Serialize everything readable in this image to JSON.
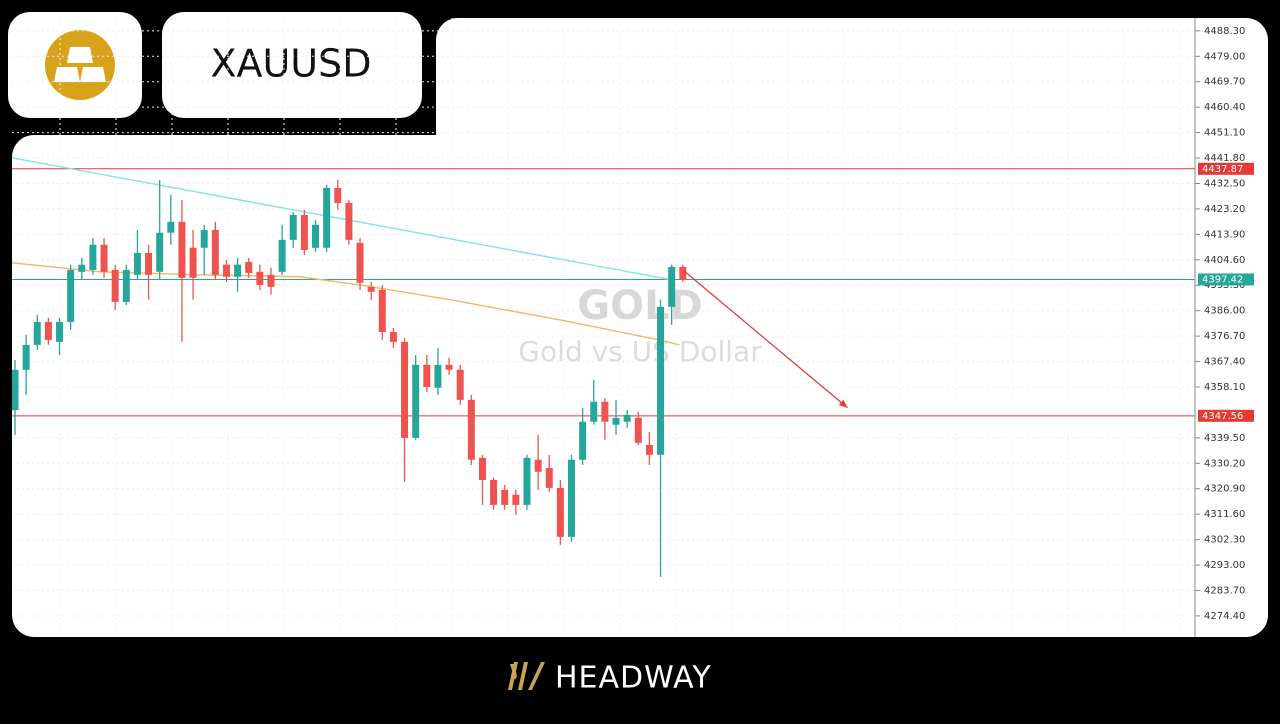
{
  "header": {
    "symbol": "XAUUSD"
  },
  "footer": {
    "brand": "HEADWAY"
  },
  "chart_data": {
    "type": "candlestick",
    "watermark": {
      "title": "GOLD",
      "subtitle": "Gold vs US Dollar"
    },
    "up_color": "#26a69a",
    "down_color": "#ef5350",
    "open": [
      4349.7,
      4364.4,
      4373.5,
      4381.9,
      4374.6,
      4381.9,
      4400.2,
      4400.9,
      4410.1,
      4400.9,
      4389.2,
      4399.1,
      4407.1,
      4400.2,
      4414.5,
      4418.5,
      4409.0,
      4409.0,
      4415.5,
      4402.8,
      4398.4,
      4403.8,
      4400.2,
      4399.1,
      4400.2,
      4411.9,
      4421.0,
      4409.0,
      4409.0,
      4430.9,
      4425.4,
      4410.8,
      4394.7,
      4393.6,
      4378.2,
      4374.6,
      4339.5,
      4366.2,
      4357.8,
      4366.2,
      4364.4,
      4353.4,
      4332.2,
      4324.1,
      4320.5,
      4318.7,
      4315.0,
      4331.5,
      4328.5,
      4321.2,
      4303.3,
      4331.5,
      4345.4,
      4352.7,
      4344.3,
      4345.4,
      4346.8,
      4336.9,
      4333.3,
      4387.4,
      4402.0
    ],
    "high": [
      4368.0,
      4377.2,
      4384.5,
      4383.4,
      4383.4,
      4402.8,
      4405.3,
      4412.6,
      4412.6,
      4402.8,
      4402.8,
      4415.5,
      4410.1,
      4433.8,
      4428.3,
      4426.5,
      4415.5,
      4417.4,
      4418.5,
      4404.6,
      4405.3,
      4405.3,
      4402.8,
      4401.7,
      4417.4,
      4422.1,
      4422.9,
      4419.2,
      4432.0,
      4433.8,
      4426.5,
      4412.6,
      4396.5,
      4395.4,
      4379.7,
      4376.1,
      4369.8,
      4369.8,
      4372.4,
      4368.8,
      4366.2,
      4355.2,
      4333.3,
      4324.9,
      4322.3,
      4320.5,
      4333.3,
      4340.6,
      4333.3,
      4324.1,
      4333.3,
      4350.5,
      4360.7,
      4354.1,
      4353.4,
      4349.7,
      4349.0,
      4341.7,
      4390.0,
      4402.8,
      4402.8
    ],
    "low": [
      4340.6,
      4355.2,
      4371.7,
      4373.5,
      4369.8,
      4379.0,
      4397.3,
      4399.1,
      4398.0,
      4386.3,
      4388.1,
      4397.3,
      4390.0,
      4397.3,
      4410.1,
      4374.6,
      4390.0,
      4399.1,
      4397.3,
      4396.5,
      4392.9,
      4398.0,
      4393.6,
      4391.8,
      4399.1,
      4409.0,
      4406.4,
      4407.5,
      4407.5,
      4422.9,
      4410.1,
      4393.6,
      4390.0,
      4375.3,
      4372.4,
      4323.4,
      4338.8,
      4356.3,
      4355.2,
      4362.5,
      4351.6,
      4329.6,
      4315.0,
      4313.2,
      4313.2,
      4311.3,
      4313.2,
      4320.5,
      4319.8,
      4300.4,
      4301.5,
      4329.6,
      4344.3,
      4338.8,
      4340.6,
      4343.2,
      4336.9,
      4329.6,
      4288.7,
      4380.8,
      4396.5
    ],
    "close": [
      4364.4,
      4373.5,
      4381.9,
      4375.3,
      4381.9,
      4400.9,
      4402.8,
      4410.1,
      4400.2,
      4389.2,
      4400.9,
      4407.1,
      4399.1,
      4414.5,
      4418.5,
      4398.0,
      4398.0,
      4415.5,
      4399.1,
      4398.4,
      4402.8,
      4399.8,
      4395.4,
      4394.7,
      4411.9,
      4421.0,
      4408.2,
      4417.4,
      4430.9,
      4425.4,
      4411.9,
      4396.2,
      4392.9,
      4378.2,
      4374.6,
      4339.5,
      4366.2,
      4358.1,
      4366.2,
      4364.4,
      4353.4,
      4331.5,
      4324.1,
      4315.0,
      4315.0,
      4315.0,
      4332.2,
      4327.1,
      4321.2,
      4303.3,
      4331.5,
      4345.4,
      4352.7,
      4345.4,
      4346.8,
      4347.9,
      4337.7,
      4333.3,
      4387.4,
      4402.0,
      4397.3
    ],
    "overlays": [
      {
        "color": "#7fe3ea",
        "x": [
          -0.3,
          59.0
        ],
        "values": [
          4441.9,
          4397.3
        ]
      },
      {
        "color": "#f0b860",
        "x": [
          -0.3,
          7.6,
          16.6,
          25.6,
          31.0,
          39.1,
          49.0,
          57.9,
          59.7
        ],
        "values": [
          4403.5,
          4400.2,
          4399.1,
          4398.4,
          4395.4,
          4390.0,
          4382.6,
          4375.3,
          4373.5
        ]
      }
    ],
    "arrow": {
      "color": "#e53935",
      "x": [
        60,
        74.8
      ],
      "values": [
        4400.9,
        4350.5
      ]
    },
    "levels": [
      {
        "value": 4437.87,
        "color": "#e53935"
      },
      {
        "value": 4397.42,
        "color": "#26a69a"
      },
      {
        "value": 4347.56,
        "color": "#e53935"
      }
    ],
    "ylim": [
      4266.7,
      4493.0
    ],
    "yticks": [
      {
        "value": 4488.3,
        "label": "4488.30"
      },
      {
        "value": 4479.0,
        "label": "4479.00"
      },
      {
        "value": 4469.7,
        "label": "4469.70"
      },
      {
        "value": 4460.4,
        "label": "4460.40"
      },
      {
        "value": 4451.1,
        "label": "4451.10"
      },
      {
        "value": 4441.8,
        "label": "4441.80"
      },
      {
        "value": 4432.5,
        "label": "4432.50"
      },
      {
        "value": 4423.2,
        "label": "4423.20"
      },
      {
        "value": 4413.9,
        "label": "4413.90"
      },
      {
        "value": 4404.6,
        "label": "4404.60"
      },
      {
        "value": 4395.3,
        "label": "4395.30"
      },
      {
        "value": 4386.0,
        "label": "4386.00"
      },
      {
        "value": 4376.7,
        "label": "4376.70"
      },
      {
        "value": 4367.4,
        "label": "4367.40"
      },
      {
        "value": 4358.1,
        "label": "4358.10"
      },
      {
        "value": 4339.5,
        "label": "4339.50"
      },
      {
        "value": 4330.2,
        "label": "4330.20"
      },
      {
        "value": 4320.9,
        "label": "4320.90"
      },
      {
        "value": 4311.6,
        "label": "4311.60"
      },
      {
        "value": 4302.3,
        "label": "4302.30"
      },
      {
        "value": 4293.0,
        "label": "4293.00"
      },
      {
        "value": 4283.7,
        "label": "4283.70"
      },
      {
        "value": 4274.4,
        "label": "4274.40"
      }
    ],
    "grid": true
  }
}
